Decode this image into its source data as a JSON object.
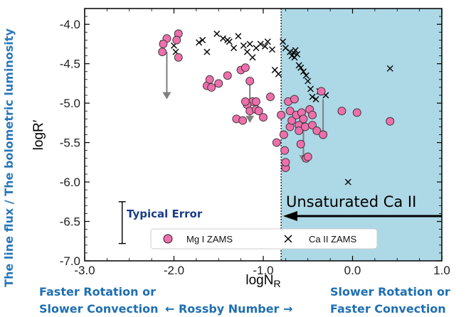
{
  "chart_data": {
    "type": "scatter",
    "xlabel": "logN",
    "xlabel_sub": "R",
    "ylabel": "logR′",
    "xlim": [
      -3.0,
      1.0
    ],
    "ylim": [
      -7.0,
      -3.8
    ],
    "x_ticks": [
      "-3.0",
      "-2.0",
      "-1.0",
      "0.0",
      "1.0"
    ],
    "x_tick_values": [
      -3.0,
      -2.0,
      -1.0,
      0.0,
      1.0
    ],
    "y_ticks": [
      "-4.0",
      "-4.5",
      "-5.0",
      "-5.5",
      "-6.0",
      "-6.5",
      "-7.0"
    ],
    "y_tick_values": [
      -4.0,
      -4.5,
      -5.0,
      -5.5,
      -6.0,
      -6.5,
      -7.0
    ],
    "shaded_region": {
      "x_from": -0.8,
      "x_to": 1.0,
      "color": "#add8e6"
    },
    "divider_x": -0.8,
    "series": [
      {
        "name": "Mg I ZAMS",
        "marker": "circle",
        "color": "#ee6fab",
        "points": [
          [
            -2.08,
            -4.18
          ],
          [
            -2.12,
            -4.25
          ],
          [
            -2.13,
            -4.35
          ],
          [
            -1.95,
            -4.12
          ],
          [
            -1.97,
            -4.2
          ],
          [
            -1.95,
            -4.42
          ],
          [
            -1.63,
            -4.78
          ],
          [
            -1.6,
            -4.7
          ],
          [
            -1.58,
            -4.8
          ],
          [
            -1.4,
            -4.65
          ],
          [
            -1.25,
            -4.58
          ],
          [
            -1.2,
            -4.55
          ],
          [
            -1.5,
            -4.75
          ],
          [
            -1.15,
            -4.72
          ],
          [
            -1.12,
            -4.98
          ],
          [
            -1.08,
            -4.98
          ],
          [
            -1.18,
            -5.02
          ],
          [
            -1.15,
            -5.1
          ],
          [
            -1.08,
            -5.08
          ],
          [
            -1.3,
            -5.2
          ],
          [
            -1.23,
            -5.22
          ],
          [
            -1.2,
            -4.98
          ],
          [
            -1.05,
            -5.1
          ],
          [
            -1.0,
            -5.18
          ],
          [
            -0.92,
            -4.92
          ],
          [
            -0.85,
            -5.5
          ],
          [
            -0.8,
            -5.15
          ],
          [
            -0.77,
            -5.4
          ],
          [
            -0.76,
            -5.6
          ],
          [
            -0.75,
            -5.82
          ],
          [
            -0.75,
            -5.75
          ],
          [
            -0.72,
            -4.98
          ],
          [
            -0.7,
            -5.1
          ],
          [
            -0.7,
            -5.3
          ],
          [
            -0.68,
            -5.22
          ],
          [
            -0.65,
            -4.95
          ],
          [
            -0.63,
            -5.15
          ],
          [
            -0.6,
            -5.28
          ],
          [
            -0.6,
            -5.35
          ],
          [
            -0.58,
            -5.52
          ],
          [
            -0.57,
            -5.12
          ],
          [
            -0.55,
            -5.2
          ],
          [
            -0.53,
            -5.3
          ],
          [
            -0.52,
            -5.7
          ],
          [
            -0.5,
            -5.68
          ],
          [
            -0.48,
            -5.08
          ],
          [
            -0.45,
            -5.15
          ],
          [
            -0.45,
            -5.28
          ],
          [
            -0.4,
            -5.35
          ],
          [
            -0.35,
            -4.85
          ],
          [
            -0.33,
            -5.4
          ],
          [
            -0.12,
            -5.1
          ],
          [
            0.05,
            -5.12
          ],
          [
            0.42,
            -5.23
          ]
        ]
      },
      {
        "name": "Ca II ZAMS",
        "marker": "x",
        "color": "#000000",
        "points": [
          [
            -2.12,
            -4.24
          ],
          [
            -2.0,
            -4.27
          ],
          [
            -1.98,
            -4.35
          ],
          [
            -1.72,
            -4.23
          ],
          [
            -1.68,
            -4.2
          ],
          [
            -1.63,
            -4.35
          ],
          [
            -1.52,
            -4.12
          ],
          [
            -1.45,
            -4.18
          ],
          [
            -1.4,
            -4.2
          ],
          [
            -1.38,
            -4.22
          ],
          [
            -1.33,
            -4.3
          ],
          [
            -1.28,
            -4.15
          ],
          [
            -1.22,
            -4.27
          ],
          [
            -1.18,
            -4.35
          ],
          [
            -1.15,
            -4.25
          ],
          [
            -1.12,
            -4.42
          ],
          [
            -1.08,
            -4.3
          ],
          [
            -1.03,
            -4.25
          ],
          [
            -0.98,
            -4.28
          ],
          [
            -0.95,
            -4.22
          ],
          [
            -0.9,
            -4.32
          ],
          [
            -0.87,
            -4.58
          ],
          [
            -0.83,
            -4.63
          ],
          [
            -0.78,
            -4.22
          ],
          [
            -0.75,
            -4.3
          ],
          [
            -0.7,
            -4.35
          ],
          [
            -0.68,
            -4.4
          ],
          [
            -0.66,
            -4.36
          ],
          [
            -0.65,
            -4.42
          ],
          [
            -0.64,
            -4.33
          ],
          [
            -0.62,
            -4.38
          ],
          [
            -0.6,
            -4.52
          ],
          [
            -0.58,
            -4.55
          ],
          [
            -0.55,
            -4.6
          ],
          [
            -0.52,
            -4.65
          ],
          [
            -0.5,
            -4.72
          ],
          [
            -0.47,
            -4.82
          ],
          [
            -0.45,
            -4.92
          ],
          [
            -0.41,
            -4.95
          ],
          [
            -0.37,
            -4.85
          ],
          [
            -0.3,
            -4.9
          ],
          [
            -0.05,
            -6.0
          ],
          [
            0.42,
            -4.56
          ]
        ]
      }
    ],
    "upper_limit_arrows": [
      {
        "x": -2.08,
        "y_from": -4.35,
        "y_to": -4.95
      },
      {
        "x": -1.15,
        "y_from": -4.72,
        "y_to": -5.25
      },
      {
        "x": -0.55,
        "y_from": -5.2,
        "y_to": -5.75
      },
      {
        "x": -0.33,
        "y_from": -4.95,
        "y_to": -5.45
      }
    ],
    "typical_error": {
      "x": -2.58,
      "y_from": -6.25,
      "y_to": -6.78
    }
  },
  "annotations": {
    "unsaturated": "Unsaturated  Ca II",
    "typical_error": "Typical Error",
    "side_label": "The line flux / The bolometric luminosity",
    "faster_line1": "Faster Rotation or",
    "faster_line2": "Slower Convection",
    "rossby": "← Rossby Number →",
    "slower_line1": "Slower Rotation or",
    "slower_line2": "Faster Convection"
  },
  "legend": {
    "mg": "Mg I ZAMS",
    "ca": "Ca II ZAMS"
  },
  "colors": {
    "shade": "#add8e6",
    "pink": "#ee6fab",
    "arrow": "#808080",
    "blue_text": "#1f6fb2"
  }
}
